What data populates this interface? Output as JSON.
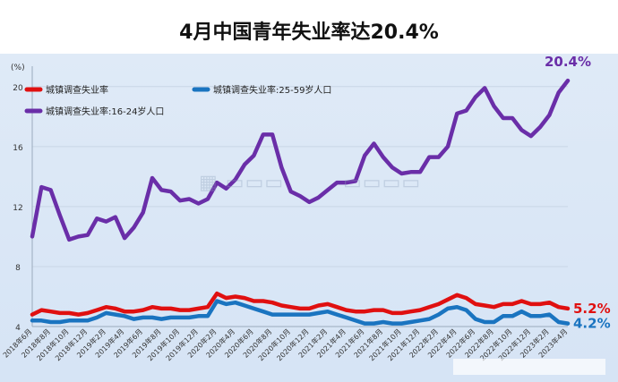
{
  "title": "4月中国青年失业率达20.4%",
  "y_unit": "(%)",
  "colors": {
    "overall": "#e01010",
    "age_25_59": "#1a74c0",
    "age_16_24": "#6a2ea8"
  },
  "chart_data": {
    "type": "line",
    "title": "4月中国青年失业率达20.4%",
    "ylabel": "(%)",
    "ylim": [
      4,
      21
    ],
    "yticks": [
      4,
      8,
      12,
      16,
      20
    ],
    "x": [
      "2018年6月",
      "2018年7月",
      "2018年8月",
      "2018年9月",
      "2018年10月",
      "2018年11月",
      "2018年12月",
      "2019年1月",
      "2019年2月",
      "2019年3月",
      "2019年4月",
      "2019年5月",
      "2019年6月",
      "2019年7月",
      "2019年8月",
      "2019年9月",
      "2019年10月",
      "2019年11月",
      "2019年12月",
      "2020年1月",
      "2020年2月",
      "2020年3月",
      "2020年4月",
      "2020年5月",
      "2020年6月",
      "2020年7月",
      "2020年8月",
      "2020年9月",
      "2020年10月",
      "2020年11月",
      "2020年12月",
      "2021年1月",
      "2021年2月",
      "2021年3月",
      "2021年4月",
      "2021年5月",
      "2021年6月",
      "2021年7月",
      "2021年8月",
      "2021年9月",
      "2021年10月",
      "2021年11月",
      "2021年12月",
      "2022年1月",
      "2022年2月",
      "2022年3月",
      "2022年4月",
      "2022年5月",
      "2022年6月",
      "2022年7月",
      "2022年8月",
      "2022年9月",
      "2022年10月",
      "2022年11月",
      "2022年12月",
      "2023年1月",
      "2023年2月",
      "2023年3月",
      "2023年4月"
    ],
    "xtick_labels": [
      "2018年6月",
      "2018年8月",
      "2018年10月",
      "2018年12月",
      "2019年2月",
      "2019年4月",
      "2019年6月",
      "2019年8月",
      "2019年10月",
      "2019年12月",
      "2020年2月",
      "2020年4月",
      "2020年6月",
      "2020年8月",
      "2020年10月",
      "2020年12月",
      "2021年2月",
      "2021年4月",
      "2021年6月",
      "2021年8月",
      "2021年10月",
      "2021年12月",
      "2022年2月",
      "2022年4月",
      "2022年6月",
      "2022年8月",
      "2022年10月",
      "2022年12月",
      "2023年2月",
      "2023年4月"
    ],
    "series": [
      {
        "name": "城镇调查失业率",
        "color": "#e01010",
        "end_label": "5.2%",
        "values": [
          4.8,
          5.1,
          5.0,
          4.9,
          4.9,
          4.8,
          4.9,
          5.1,
          5.3,
          5.2,
          5.0,
          5.0,
          5.1,
          5.3,
          5.2,
          5.2,
          5.1,
          5.1,
          5.2,
          5.3,
          6.2,
          5.9,
          6.0,
          5.9,
          5.7,
          5.7,
          5.6,
          5.4,
          5.3,
          5.2,
          5.2,
          5.4,
          5.5,
          5.3,
          5.1,
          5.0,
          5.0,
          5.1,
          5.1,
          4.9,
          4.9,
          5.0,
          5.1,
          5.3,
          5.5,
          5.8,
          6.1,
          5.9,
          5.5,
          5.4,
          5.3,
          5.5,
          5.5,
          5.7,
          5.5,
          5.5,
          5.6,
          5.3,
          5.2
        ]
      },
      {
        "name": "城镇调查失业率:25-59岁人口",
        "color": "#1a74c0",
        "end_label": "4.2%",
        "values": [
          4.4,
          4.4,
          4.3,
          4.3,
          4.4,
          4.4,
          4.4,
          4.6,
          4.9,
          4.8,
          4.7,
          4.5,
          4.6,
          4.6,
          4.5,
          4.6,
          4.6,
          4.6,
          4.7,
          4.7,
          5.7,
          5.5,
          5.6,
          5.4,
          5.2,
          5.0,
          4.8,
          4.8,
          4.8,
          4.8,
          4.8,
          4.9,
          5.0,
          4.8,
          4.6,
          4.4,
          4.2,
          4.2,
          4.3,
          4.2,
          4.2,
          4.3,
          4.4,
          4.5,
          4.8,
          5.2,
          5.3,
          5.1,
          4.5,
          4.3,
          4.3,
          4.7,
          4.7,
          5.0,
          4.7,
          4.7,
          4.8,
          4.3,
          4.2
        ]
      },
      {
        "name": "城镇调查失业率:16-24岁人口",
        "color": "#6a2ea8",
        "end_label": "20.4%",
        "values": [
          10.0,
          13.3,
          13.1,
          11.4,
          9.8,
          10.0,
          10.1,
          11.2,
          11.0,
          11.3,
          9.9,
          10.6,
          11.6,
          13.9,
          13.1,
          13.0,
          12.4,
          12.5,
          12.2,
          12.5,
          13.6,
          13.2,
          13.8,
          14.8,
          15.4,
          16.8,
          16.8,
          14.6,
          13.0,
          12.7,
          12.3,
          12.6,
          13.1,
          13.6,
          13.6,
          13.7,
          15.4,
          16.2,
          15.3,
          14.6,
          14.2,
          14.3,
          14.3,
          15.3,
          15.3,
          16.0,
          18.2,
          18.4,
          19.3,
          19.9,
          18.7,
          17.9,
          17.9,
          17.1,
          16.7,
          17.3,
          18.1,
          19.6,
          20.4
        ]
      }
    ],
    "legend": "top-left"
  }
}
